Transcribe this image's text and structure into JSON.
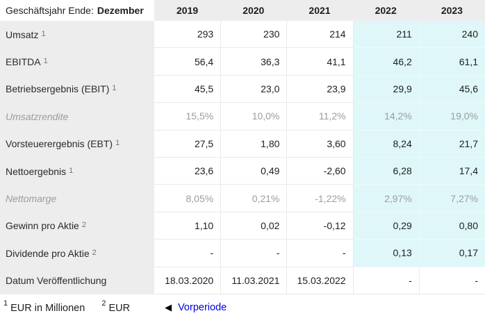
{
  "colors": {
    "highlight_bg": "#dff7f8",
    "header_bg": "#ededed",
    "label_column_bg": "#ededed",
    "muted_text": "#9c9c9c",
    "link_blue": "#0000e0",
    "grid_line": "#e9e9e9"
  },
  "table": {
    "header": {
      "title_plain": "Geschäftsjahr Ende:",
      "title_bold": "Dezember",
      "years": [
        "2019",
        "2020",
        "2021",
        "2022",
        "2023"
      ]
    },
    "highlight_year_indexes": [
      3,
      4
    ],
    "rows": [
      {
        "label": "Umsatz",
        "sup": "1",
        "values": [
          "293",
          "230",
          "214",
          "211",
          "240"
        ]
      },
      {
        "label": "EBITDA",
        "sup": "1",
        "values": [
          "56,4",
          "36,3",
          "41,1",
          "46,2",
          "61,1"
        ]
      },
      {
        "label": "Betriebsergebnis (EBIT)",
        "sup": "1",
        "values": [
          "45,5",
          "23,0",
          "23,9",
          "29,9",
          "45,6"
        ]
      },
      {
        "label": "Umsatzrendite",
        "italic": true,
        "values": [
          "15,5%",
          "10,0%",
          "11,2%",
          "14,2%",
          "19,0%"
        ]
      },
      {
        "label": "Vorsteuerergebnis (EBT)",
        "sup": "1",
        "values": [
          "27,5",
          "1,80",
          "3,60",
          "8,24",
          "21,7"
        ]
      },
      {
        "label": "Nettoergebnis",
        "sup": "1",
        "values": [
          "23,6",
          "0,49",
          "-2,60",
          "6,28",
          "17,4"
        ]
      },
      {
        "label": "Nettomarge",
        "italic": true,
        "values": [
          "8,05%",
          "0,21%",
          "-1,22%",
          "2,97%",
          "7,27%"
        ]
      },
      {
        "label": "Gewinn pro Aktie",
        "sup": "2",
        "values": [
          "1,10",
          "0,02",
          "-0,12",
          "0,29",
          "0,80"
        ]
      },
      {
        "label": "Dividende pro Aktie",
        "sup": "2",
        "values": [
          "-",
          "-",
          "-",
          "0,13",
          "0,17"
        ]
      },
      {
        "label": "Datum Veröffentlichung",
        "no_highlight": true,
        "values": [
          "18.03.2020",
          "11.03.2021",
          "15.03.2022",
          "-",
          "-"
        ]
      }
    ]
  },
  "footer": {
    "note1_sup": "1",
    "note1": "EUR in Millionen",
    "note2_sup": "2",
    "note2": "EUR",
    "prev_icon": "left-triangle-icon",
    "prev_icon_glyph": "◀",
    "prev_label": "Vorperiode"
  }
}
